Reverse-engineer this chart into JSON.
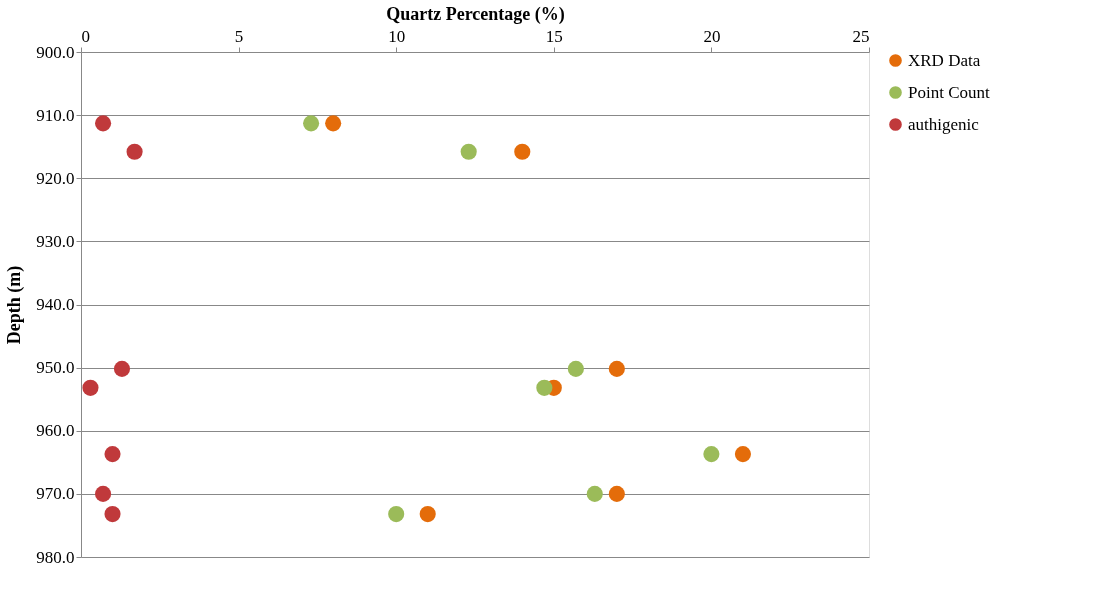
{
  "chart_data": {
    "type": "scatter",
    "xlabel": "Quartz Percentage (%)",
    "ylabel": "Depth (m)",
    "xlim": [
      0,
      25
    ],
    "xticks": [
      0,
      5,
      10,
      15,
      20,
      25
    ],
    "ylim": [
      980,
      900
    ],
    "yticks": [
      {
        "value": 900,
        "label": "900.0"
      },
      {
        "value": 910,
        "label": "910.0"
      },
      {
        "value": 920,
        "label": "920.0"
      },
      {
        "value": 930,
        "label": "930.0"
      },
      {
        "value": 940,
        "label": "940.0"
      },
      {
        "value": 950,
        "label": "950.0"
      },
      {
        "value": 960,
        "label": "960.0"
      },
      {
        "value": 970,
        "label": "970.0"
      },
      {
        "value": 980,
        "label": "980.0"
      }
    ],
    "grid": "y",
    "legend": "right",
    "marker": "circle",
    "series": [
      {
        "name": "XRD Data",
        "color": "#e46c0a",
        "x": [
          8.0,
          14.0,
          17.0,
          15.0,
          21.0,
          17.0,
          11.0
        ],
        "values": [
          911.3,
          915.8,
          950.2,
          953.2,
          963.7,
          970.0,
          973.2
        ]
      },
      {
        "name": "Point Count",
        "color": "#9bbb59",
        "x": [
          7.3,
          12.3,
          15.7,
          14.7,
          20.0,
          16.3,
          10.0
        ],
        "values": [
          911.3,
          915.8,
          950.2,
          953.2,
          963.7,
          970.0,
          973.2
        ]
      },
      {
        "name": "authigenic",
        "color": "#c0393b",
        "x": [
          0.7,
          1.7,
          1.3,
          0.3,
          1.0,
          0.7,
          1.0
        ],
        "values": [
          911.3,
          915.8,
          950.2,
          953.2,
          963.7,
          970.0,
          973.2
        ]
      }
    ]
  }
}
